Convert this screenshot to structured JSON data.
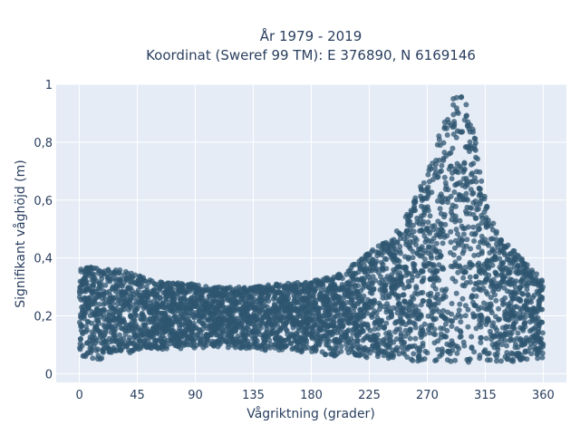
{
  "chart_data": {
    "type": "scatter",
    "title_lines": [
      "År 1979 - 2019",
      "Koordinat (Sweref 99 TM): E 376890, N 6169146"
    ],
    "xlabel": "Vågriktning (grader)",
    "ylabel": "Signifikant våghöjd (m)",
    "xlim": [
      -18,
      378
    ],
    "ylim": [
      -0.03,
      1.0
    ],
    "x_ticks": [
      0,
      45,
      90,
      135,
      180,
      225,
      270,
      315,
      360
    ],
    "x_tick_labels": [
      "0",
      "45",
      "90",
      "135",
      "180",
      "225",
      "270",
      "315",
      "360"
    ],
    "y_ticks": [
      0,
      0.2,
      0.4,
      0.6,
      0.8,
      1.0
    ],
    "y_tick_labels": [
      "0",
      "0,2",
      "0,4",
      "0,6",
      "0,8",
      "1"
    ],
    "grid": true,
    "colors": {
      "marker": "#2f5570",
      "plot_bg": "#e5ecf6",
      "grid": "#ffffff",
      "text": "#2a3f5f"
    },
    "envelope": {
      "x": [
        0,
        10,
        20,
        30,
        40,
        45,
        60,
        90,
        120,
        135,
        150,
        180,
        200,
        210,
        225,
        240,
        250,
        260,
        270,
        280,
        290,
        295,
        300,
        310,
        315,
        320,
        330,
        340,
        350,
        360
      ],
      "upper": [
        0.36,
        0.37,
        0.36,
        0.36,
        0.35,
        0.34,
        0.32,
        0.31,
        0.3,
        0.3,
        0.31,
        0.32,
        0.34,
        0.37,
        0.42,
        0.47,
        0.53,
        0.6,
        0.7,
        0.84,
        0.95,
        0.97,
        0.95,
        0.78,
        0.6,
        0.53,
        0.46,
        0.42,
        0.37,
        0.33
      ],
      "lower": [
        0.06,
        0.05,
        0.05,
        0.06,
        0.07,
        0.08,
        0.08,
        0.09,
        0.09,
        0.08,
        0.08,
        0.07,
        0.06,
        0.06,
        0.05,
        0.05,
        0.05,
        0.04,
        0.04,
        0.04,
        0.04,
        0.04,
        0.04,
        0.04,
        0.04,
        0.04,
        0.04,
        0.04,
        0.05,
        0.05
      ]
    }
  }
}
